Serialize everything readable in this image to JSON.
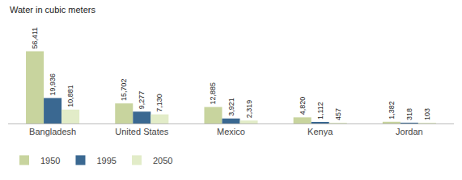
{
  "chart_data": {
    "type": "bar",
    "ylabel": "Water in cubic meters",
    "categories": [
      "Bangladesh",
      "United States",
      "Mexico",
      "Kenya",
      "Jordan"
    ],
    "series": [
      {
        "name": "1950",
        "color": "#c8d49e",
        "values": [
          56411,
          15702,
          12885,
          4820,
          1382
        ],
        "value_labels": [
          "56,411",
          "15,702",
          "12,885",
          "4,820",
          "1,382"
        ]
      },
      {
        "name": "1995",
        "color": "#3a6891",
        "values": [
          19936,
          9277,
          3921,
          1112,
          318
        ],
        "value_labels": [
          "19,936",
          "9,277",
          "3,921",
          "1,112",
          "318"
        ]
      },
      {
        "name": "2050",
        "color": "#e2ecc8",
        "values": [
          10881,
          7130,
          2319,
          457,
          103
        ],
        "value_labels": [
          "10,881",
          "7,130",
          "2,319",
          "457",
          "103"
        ]
      }
    ],
    "ylim": [
      0,
      65000
    ],
    "grid": false,
    "legend": "lower left",
    "data_labels": true,
    "tick_labels": "x"
  }
}
